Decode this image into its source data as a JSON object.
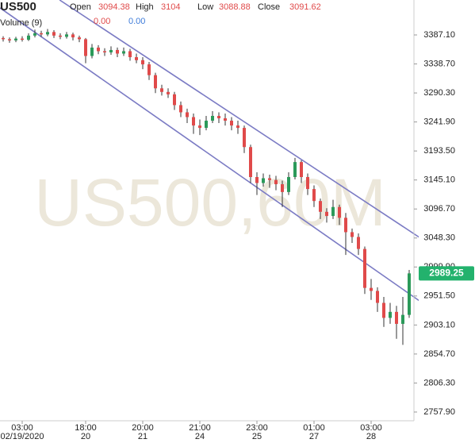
{
  "chart_data": {
    "type": "candlestick",
    "symbol": "US500",
    "watermark": "US500,60M",
    "ohlc_header": {
      "open_label": "Open",
      "open": 3094.38,
      "high_label": "High",
      "high": 3104.0,
      "low_label": "Low",
      "low": 3088.88,
      "close_label": "Close",
      "close": 3091.62
    },
    "volume_header": {
      "label": "Volume (9)",
      "values": [
        "0.00",
        "0.00"
      ],
      "colors": [
        "#e04a4a",
        "#3d7bd9"
      ]
    },
    "up_color": "#2b9a5a",
    "down_color": "#e04a4a",
    "last_price_color": "#23b26d",
    "ylim": [
      2743.3,
      3445.4
    ],
    "yticks": [
      {
        "value": 3387.1,
        "label": "3387.10"
      },
      {
        "value": 3338.7,
        "label": "3338.70"
      },
      {
        "value": 3290.3,
        "label": "3290.30"
      },
      {
        "value": 3241.9,
        "label": "3241.90"
      },
      {
        "value": 3193.5,
        "label": "3193.50"
      },
      {
        "value": 3145.1,
        "label": "3145.10"
      },
      {
        "value": 3096.7,
        "label": "3096.70"
      },
      {
        "value": 3048.3,
        "label": "3048.30"
      },
      {
        "value": 2999.9,
        "label": "2999.90"
      },
      {
        "value": 2951.5,
        "label": "2951.50"
      },
      {
        "value": 2903.1,
        "label": "2903.10"
      },
      {
        "value": 2854.7,
        "label": "2854.70"
      },
      {
        "value": 2806.3,
        "label": "2806.30"
      },
      {
        "value": 2757.9,
        "label": "2757.90"
      }
    ],
    "xlim": [
      0,
      65
    ],
    "xticks": [
      {
        "value": 3,
        "label": "03:00",
        "date": "02/19/2020"
      },
      {
        "value": 13,
        "label": "18:00",
        "date": "20"
      },
      {
        "value": 22,
        "label": "20:00",
        "date": "21"
      },
      {
        "value": 31,
        "label": "21:00",
        "date": "24"
      },
      {
        "value": 40,
        "label": "23:00",
        "date": "25"
      },
      {
        "value": 49,
        "label": "01:00",
        "date": "27"
      },
      {
        "value": 58,
        "label": "03:00",
        "date": "28"
      }
    ],
    "trendline_color": "#7b7bc4",
    "trendlines": [
      {
        "x": [
          9.4,
          66.3
        ],
        "y": [
          3445.4,
          3048.0
        ]
      },
      {
        "x": [
          0,
          66.3
        ],
        "y": [
          3432.2,
          2942.0
        ]
      }
    ],
    "candles": [
      [
        3382,
        3385,
        3376,
        3380
      ],
      [
        3380,
        3383,
        3374,
        3378
      ],
      [
        3378,
        3384,
        3375,
        3381
      ],
      [
        3381,
        3385,
        3376,
        3379
      ],
      [
        3379,
        3390,
        3377,
        3386
      ],
      [
        3386,
        3396,
        3383,
        3390
      ],
      [
        3390,
        3394,
        3384,
        3388
      ],
      [
        3388,
        3397,
        3385,
        3392
      ],
      [
        3392,
        3395,
        3382,
        3386
      ],
      [
        3386,
        3390,
        3380,
        3384
      ],
      [
        3384,
        3392,
        3381,
        3388
      ],
      [
        3388,
        3391,
        3378,
        3383
      ],
      [
        3383,
        3386,
        3375,
        3380
      ],
      [
        3380,
        3382,
        3340,
        3352
      ],
      [
        3352,
        3372,
        3348,
        3366
      ],
      [
        3366,
        3370,
        3355,
        3360
      ],
      [
        3360,
        3365,
        3352,
        3358
      ],
      [
        3358,
        3368,
        3354,
        3362
      ],
      [
        3362,
        3366,
        3350,
        3356
      ],
      [
        3356,
        3366,
        3352,
        3360
      ],
      [
        3360,
        3364,
        3344,
        3350
      ],
      [
        3350,
        3356,
        3340,
        3345
      ],
      [
        3345,
        3350,
        3330,
        3338
      ],
      [
        3338,
        3342,
        3312,
        3320
      ],
      [
        3320,
        3324,
        3290,
        3298
      ],
      [
        3298,
        3304,
        3286,
        3292
      ],
      [
        3292,
        3298,
        3282,
        3288
      ],
      [
        3288,
        3292,
        3262,
        3270
      ],
      [
        3270,
        3276,
        3250,
        3258
      ],
      [
        3258,
        3264,
        3240,
        3250
      ],
      [
        3250,
        3256,
        3222,
        3236
      ],
      [
        3236,
        3246,
        3220,
        3232
      ],
      [
        3232,
        3252,
        3228,
        3244
      ],
      [
        3244,
        3260,
        3240,
        3252
      ],
      [
        3252,
        3258,
        3240,
        3248
      ],
      [
        3248,
        3256,
        3236,
        3244
      ],
      [
        3244,
        3250,
        3228,
        3236
      ],
      [
        3236,
        3244,
        3222,
        3232
      ],
      [
        3232,
        3236,
        3190,
        3200
      ],
      [
        3200,
        3204,
        3140,
        3150
      ],
      [
        3150,
        3158,
        3120,
        3140
      ],
      [
        3140,
        3156,
        3134,
        3148
      ],
      [
        3148,
        3154,
        3132,
        3145
      ],
      [
        3145,
        3152,
        3128,
        3138
      ],
      [
        3138,
        3144,
        3100,
        3125
      ],
      [
        3125,
        3158,
        3120,
        3150
      ],
      [
        3150,
        3182,
        3146,
        3175
      ],
      [
        3175,
        3178,
        3140,
        3150
      ],
      [
        3150,
        3156,
        3120,
        3130
      ],
      [
        3130,
        3136,
        3100,
        3110
      ],
      [
        3110,
        3114,
        3080,
        3092
      ],
      [
        3092,
        3098,
        3074,
        3085
      ],
      [
        3085,
        3112,
        3080,
        3100
      ],
      [
        3100,
        3104,
        3070,
        3082
      ],
      [
        3082,
        3090,
        3020,
        3058
      ],
      [
        3058,
        3064,
        3040,
        3050
      ],
      [
        3050,
        3056,
        3020,
        3030
      ],
      [
        3030,
        3034,
        2955,
        2965
      ],
      [
        2965,
        2980,
        2945,
        2960
      ],
      [
        2960,
        2966,
        2925,
        2940
      ],
      [
        2940,
        2950,
        2900,
        2915
      ],
      [
        2915,
        2940,
        2905,
        2925
      ],
      [
        2925,
        2935,
        2880,
        2905
      ],
      [
        2905,
        2950,
        2870,
        2920
      ],
      [
        2920,
        2995,
        2915,
        2989.25
      ]
    ]
  }
}
